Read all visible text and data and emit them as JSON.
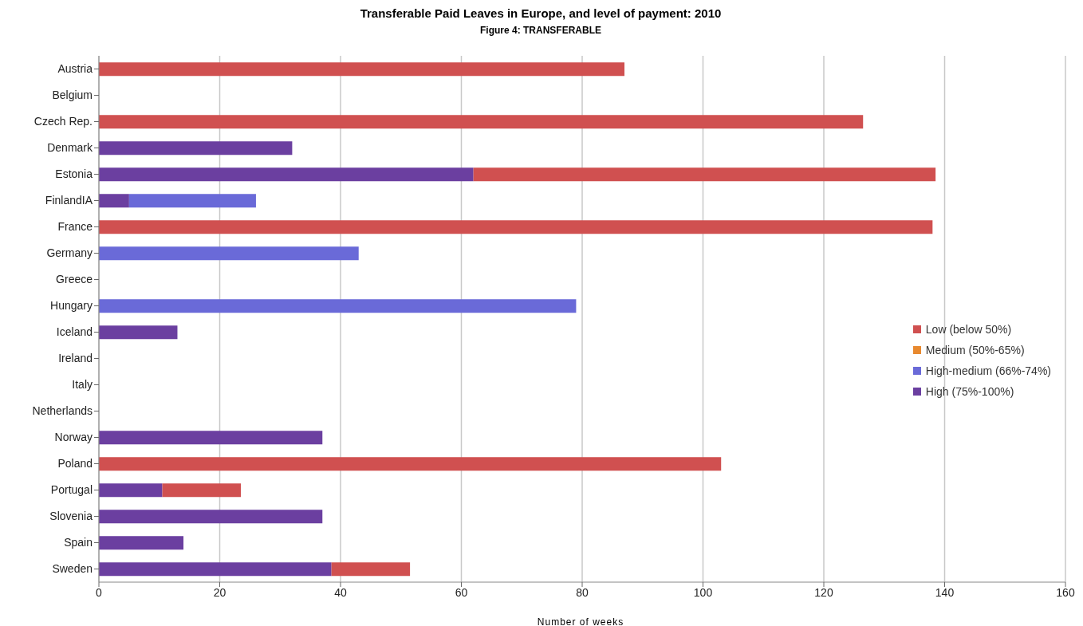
{
  "chart_data": {
    "type": "bar",
    "orientation": "horizontal",
    "stacked": true,
    "title": "Transferable Paid Leaves in Europe, and level of payment: 2010",
    "subtitle": "Figure 4: TRANSFERABLE",
    "xlabel": "Number of weeks",
    "categories": [
      "Austria",
      "Belgium",
      "Czech Rep.",
      "Denmark",
      "Estonia",
      "FinlandIA",
      "France",
      "Germany",
      "Greece",
      "Hungary",
      "Iceland",
      "Ireland",
      "Italy",
      "Netherlands",
      "Norway",
      "Poland",
      "Portugal",
      "Slovenia",
      "Spain",
      "Sweden"
    ],
    "series": [
      {
        "name": "High (75%-100%)",
        "color": "#6b3fa0",
        "values": [
          null,
          null,
          null,
          32,
          62,
          5,
          null,
          null,
          null,
          null,
          13,
          null,
          null,
          null,
          37,
          null,
          10.5,
          37,
          14,
          38.5
        ]
      },
      {
        "name": "High-medium (66%-74%)",
        "color": "#6a6ad8",
        "values": [
          null,
          null,
          null,
          null,
          null,
          21,
          null,
          43,
          null,
          79,
          null,
          null,
          null,
          null,
          null,
          null,
          null,
          null,
          null,
          null
        ]
      },
      {
        "name": "Medium (50%-65%)",
        "color": "#e8892f",
        "values": [
          null,
          null,
          null,
          null,
          null,
          null,
          null,
          null,
          null,
          null,
          null,
          null,
          null,
          null,
          null,
          null,
          null,
          null,
          null,
          null
        ]
      },
      {
        "name": "Low (below 50%)",
        "color": "#d05050",
        "values": [
          87,
          null,
          126.5,
          null,
          76.5,
          null,
          138,
          null,
          null,
          null,
          null,
          null,
          null,
          null,
          null,
          103,
          13,
          null,
          null,
          13
        ]
      }
    ],
    "xlim": [
      0,
      160
    ],
    "xticks": [
      0,
      20,
      40,
      60,
      80,
      100,
      120,
      140,
      160
    ],
    "grid": "x",
    "legend": "right"
  }
}
